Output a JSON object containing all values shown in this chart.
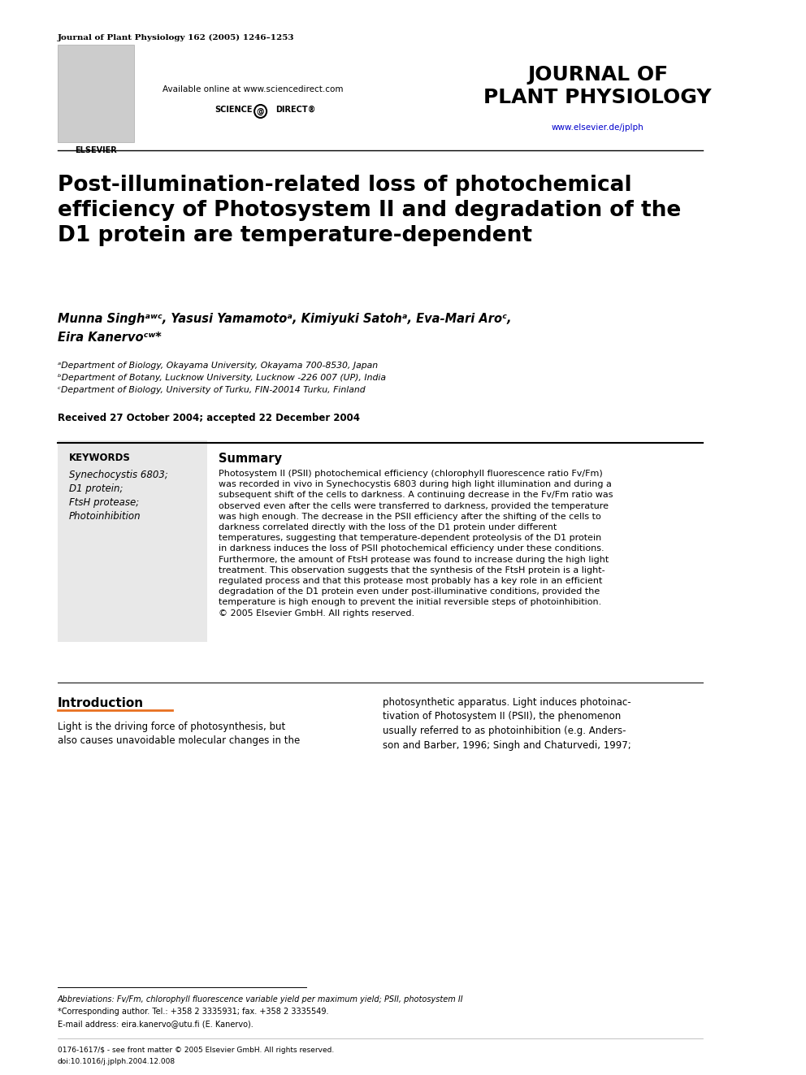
{
  "journal_line": "Journal of Plant Physiology 162 (2005) 1246–1253",
  "journal_title_line1": "JOURNAL OF",
  "journal_title_line2": "PLANT PHYSIOLOGY",
  "journal_url": "www.elsevier.de/jplph",
  "available_online": "Available online at www.sciencedirect.com",
  "paper_title": "Post-illumination-related loss of photochemical\nefficiency of Photosystem II and degradation of the\nD1 protein are temperature-dependent",
  "authors_line1": "Munna Singhᵃʷᶜ, Yasusi Yamamotoᵃ, Kimiyuki Satohᵃ, Eva-Mari Aroᶜ,",
  "authors_line2": "Eira Kanervoᶜʷ*",
  "affil_a": "ᵃDepartment of Biology, Okayama University, Okayama 700-8530, Japan",
  "affil_b": "ᵇDepartment of Botany, Lucknow University, Lucknow -226 007 (UP), India",
  "affil_c": "ᶜDepartment of Biology, University of Turku, FIN-20014 Turku, Finland",
  "received": "Received 27 October 2004; accepted 22 December 2004",
  "keywords_header": "KEYWORDS",
  "keywords": [
    "Synechocystis 6803;",
    "D1 protein;",
    "FtsH protease;",
    "Photoinhibition"
  ],
  "summary_title": "Summary",
  "summary_text": "Photosystem II (PSII) photochemical efficiency (chlorophyll fluorescence ratio Fv/Fm)\nwas recorded in vivo in Synechocystis 6803 during high light illumination and during a\nsubsequent shift of the cells to darkness. A continuing decrease in the Fv/Fm ratio was\nobserved even after the cells were transferred to darkness, provided the temperature\nwas high enough. The decrease in the PSII efficiency after the shifting of the cells to\ndarkness correlated directly with the loss of the D1 protein under different\ntemperatures, suggesting that temperature-dependent proteolysis of the D1 protein\nin darkness induces the loss of PSII photochemical efficiency under these conditions.\nFurthermore, the amount of FtsH protease was found to increase during the high light\ntreatment. This observation suggests that the synthesis of the FtsH protein is a light-\nregulated process and that this protease most probably has a key role in an efficient\ndegradation of the D1 protein even under post-illuminative conditions, provided the\ntemperature is high enough to prevent the initial reversible steps of photoinhibition.\n© 2005 Elsevier GmbH. All rights reserved.",
  "intro_title": "Introduction",
  "intro_text_col1": "Light is the driving force of photosynthesis, but\nalso causes unavoidable molecular changes in the",
  "intro_text_col2": "photosynthetic apparatus. Light induces photoinac-\ntivation of Photosystem II (PSII), the phenomenon\nusually referred to as photoinhibition (e.g. Anders-\nson and Barber, 1996; Singh and Chaturvedi, 1997;",
  "footnote_abbrev": "Abbreviations: Fv/Fm, chlorophyll fluorescence variable yield per maximum yield; PSII, photosystem II",
  "footnote_corresponding": "*Corresponding author. Tel.: +358 2 3335931; fax. +358 2 3335549.",
  "footnote_email": "E-mail address: eira.kanervo@utu.fi (E. Kanervo).",
  "footer_issn": "0176-1617/$ - see front matter © 2005 Elsevier GmbH. All rights reserved.",
  "footer_doi": "doi:10.1016/j.jplph.2004.12.008",
  "bg_color": "#ffffff",
  "text_color": "#000000",
  "blue_color": "#0000cc",
  "keyword_bg": "#e8e8e8",
  "line_color": "#000000"
}
